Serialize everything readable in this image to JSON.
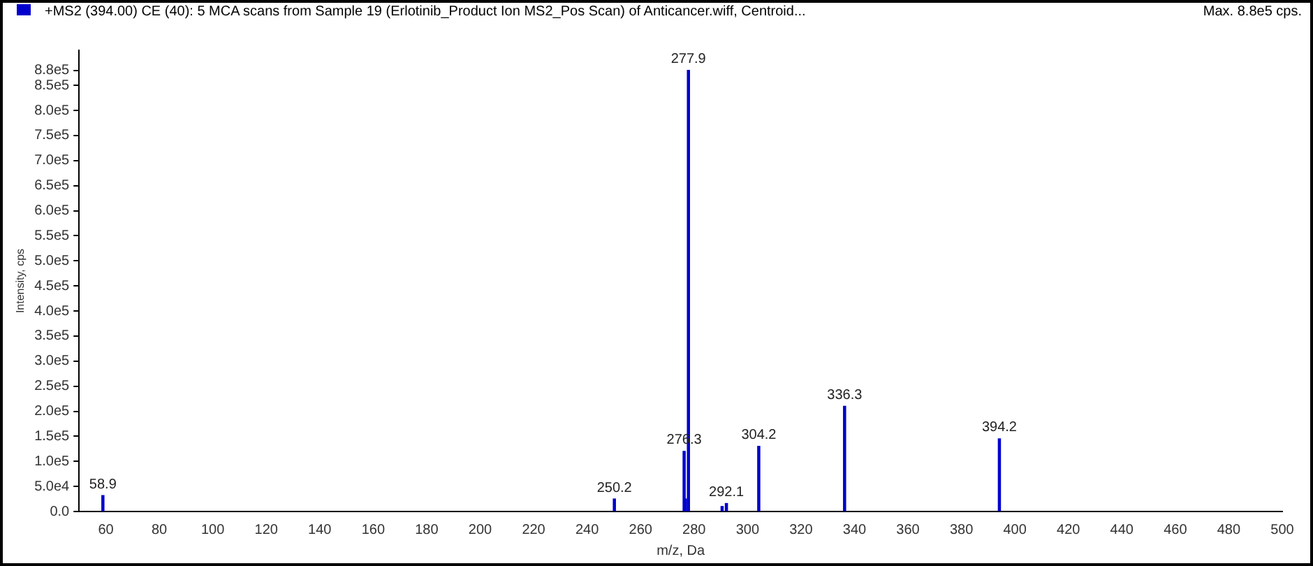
{
  "chart_data": {
    "type": "bar",
    "title": "+MS2 (394.00) CE (40): 5 MCA scans from Sample 19 (Erlotinib_Product Ion MS2_Pos Scan) of Anticancer.wiff, Centroid...",
    "xlabel": "m/z, Da",
    "ylabel": "Intensity, cps",
    "x": [
      58.9,
      250.2,
      276.3,
      276.8,
      277.5,
      277.9,
      290.5,
      292.1,
      303.8,
      304.2,
      336.0,
      336.3,
      394.2
    ],
    "values": [
      32000,
      25000,
      120000,
      25000,
      null,
      880000,
      10000,
      16000,
      null,
      130000,
      null,
      210000,
      145000
    ],
    "color": "#0000cc",
    "xlim": [
      50,
      500
    ],
    "xticks": [
      60,
      80,
      100,
      120,
      140,
      160,
      180,
      200,
      220,
      240,
      260,
      280,
      300,
      320,
      340,
      360,
      380,
      400,
      420,
      440,
      460,
      480,
      500
    ],
    "ylim": [
      0,
      920000
    ],
    "yticks": [
      {
        "value": 0,
        "label": "0.0"
      },
      {
        "value": 50000,
        "label": "5.0e4"
      },
      {
        "value": 100000,
        "label": "1.0e5"
      },
      {
        "value": 150000,
        "label": "1.5e5"
      },
      {
        "value": 200000,
        "label": "2.0e5"
      },
      {
        "value": 250000,
        "label": "2.5e5"
      },
      {
        "value": 300000,
        "label": "3.0e5"
      },
      {
        "value": 350000,
        "label": "3.5e5"
      },
      {
        "value": 400000,
        "label": "4.0e5"
      },
      {
        "value": 450000,
        "label": "4.5e5"
      },
      {
        "value": 500000,
        "label": "5.0e5"
      },
      {
        "value": 550000,
        "label": "5.5e5"
      },
      {
        "value": 600000,
        "label": "6.0e5"
      },
      {
        "value": 650000,
        "label": "6.5e5"
      },
      {
        "value": 700000,
        "label": "7.0e5"
      },
      {
        "value": 750000,
        "label": "7.5e5"
      },
      {
        "value": 800000,
        "label": "8.0e5"
      },
      {
        "value": 850000,
        "label": "8.5e5"
      },
      {
        "value": 880000,
        "label": "8.8e5"
      }
    ],
    "grid": false,
    "legend": false,
    "annotations": [
      "Max. 8.8e5 cps.",
      {
        "text": "58.9",
        "x": 58.9,
        "y": 32000
      },
      {
        "text": "250.2",
        "x": 250.2,
        "y": 25000
      },
      {
        "text": "276.3",
        "x": 276.3,
        "y": 120000
      },
      {
        "text": "277.9",
        "x": 277.9,
        "y": 880000
      },
      {
        "text": "292.1",
        "x": 292.1,
        "y": 16000
      },
      {
        "text": "304.2",
        "x": 304.2,
        "y": 130000
      },
      {
        "text": "336.3",
        "x": 336.3,
        "y": 210000
      },
      {
        "text": "394.2",
        "x": 394.2,
        "y": 145000
      }
    ]
  }
}
